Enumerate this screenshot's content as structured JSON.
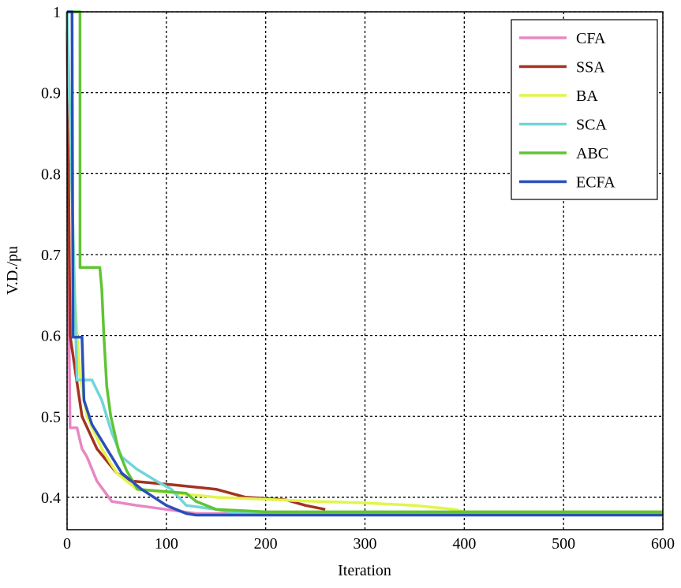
{
  "chart_data": {
    "type": "line",
    "title": "",
    "xlabel": "Iteration",
    "ylabel": "V.D./pu",
    "xlim": [
      0,
      600
    ],
    "ylim": [
      0.36,
      1
    ],
    "xticks": [
      0,
      100,
      200,
      300,
      400,
      500,
      600
    ],
    "yticks": [
      0.4,
      0.5,
      0.6,
      0.7,
      0.8,
      0.9,
      1
    ],
    "xtick_labels": [
      "0",
      "100",
      "200",
      "300",
      "400",
      "500",
      "600"
    ],
    "ytick_labels": [
      "0.4",
      "0.5",
      "0.6",
      "0.7",
      "0.8",
      "0.9",
      "1"
    ],
    "grid": true,
    "legend_position": "top-right",
    "series": [
      {
        "name": "CFA",
        "color": "#e887c4",
        "points": [
          [
            0,
            1
          ],
          [
            2,
            0.6
          ],
          [
            3,
            0.486
          ],
          [
            10,
            0.486
          ],
          [
            15,
            0.46
          ],
          [
            20,
            0.45
          ],
          [
            30,
            0.42
          ],
          [
            45,
            0.395
          ],
          [
            70,
            0.39
          ],
          [
            100,
            0.385
          ],
          [
            130,
            0.38
          ],
          [
            600,
            0.38
          ]
        ]
      },
      {
        "name": "SSA",
        "color": "#a3331f",
        "points": [
          [
            0,
            1
          ],
          [
            3,
            0.6
          ],
          [
            15,
            0.5
          ],
          [
            30,
            0.46
          ],
          [
            50,
            0.43
          ],
          [
            65,
            0.42
          ],
          [
            110,
            0.415
          ],
          [
            150,
            0.41
          ],
          [
            180,
            0.4
          ],
          [
            220,
            0.397
          ],
          [
            240,
            0.39
          ],
          [
            260,
            0.385
          ]
        ]
      },
      {
        "name": "BA",
        "color": "#e2f54a",
        "points": [
          [
            0,
            1
          ],
          [
            8,
            0.64
          ],
          [
            13,
            0.55
          ],
          [
            20,
            0.5
          ],
          [
            35,
            0.46
          ],
          [
            50,
            0.43
          ],
          [
            70,
            0.41
          ],
          [
            150,
            0.4
          ],
          [
            250,
            0.395
          ],
          [
            300,
            0.393
          ],
          [
            350,
            0.39
          ],
          [
            390,
            0.385
          ],
          [
            400,
            0.382
          ],
          [
            600,
            0.382
          ]
        ]
      },
      {
        "name": "SCA",
        "color": "#72d5d8",
        "points": [
          [
            0,
            1
          ],
          [
            10,
            0.545
          ],
          [
            25,
            0.545
          ],
          [
            35,
            0.52
          ],
          [
            45,
            0.48
          ],
          [
            55,
            0.45
          ],
          [
            70,
            0.435
          ],
          [
            90,
            0.42
          ],
          [
            105,
            0.41
          ],
          [
            120,
            0.39
          ],
          [
            150,
            0.385
          ],
          [
            170,
            0.381
          ],
          [
            600,
            0.381
          ]
        ]
      },
      {
        "name": "ABC",
        "color": "#5fc434",
        "points": [
          [
            0,
            1
          ],
          [
            13,
            1
          ],
          [
            13,
            0.684
          ],
          [
            33,
            0.684
          ],
          [
            35,
            0.657
          ],
          [
            37,
            0.6
          ],
          [
            40,
            0.537
          ],
          [
            44,
            0.5
          ],
          [
            52,
            0.457
          ],
          [
            60,
            0.433
          ],
          [
            71,
            0.41
          ],
          [
            120,
            0.405
          ],
          [
            130,
            0.395
          ],
          [
            150,
            0.385
          ],
          [
            200,
            0.382
          ],
          [
            600,
            0.382
          ]
        ]
      },
      {
        "name": "ECFA",
        "color": "#2850b8",
        "points": [
          [
            0,
            1
          ],
          [
            5,
            1
          ],
          [
            6,
            0.598
          ],
          [
            15,
            0.598
          ],
          [
            17,
            0.52
          ],
          [
            25,
            0.49
          ],
          [
            40,
            0.46
          ],
          [
            55,
            0.43
          ],
          [
            75,
            0.41
          ],
          [
            100,
            0.39
          ],
          [
            120,
            0.38
          ],
          [
            130,
            0.378
          ],
          [
            600,
            0.378
          ]
        ]
      }
    ]
  }
}
